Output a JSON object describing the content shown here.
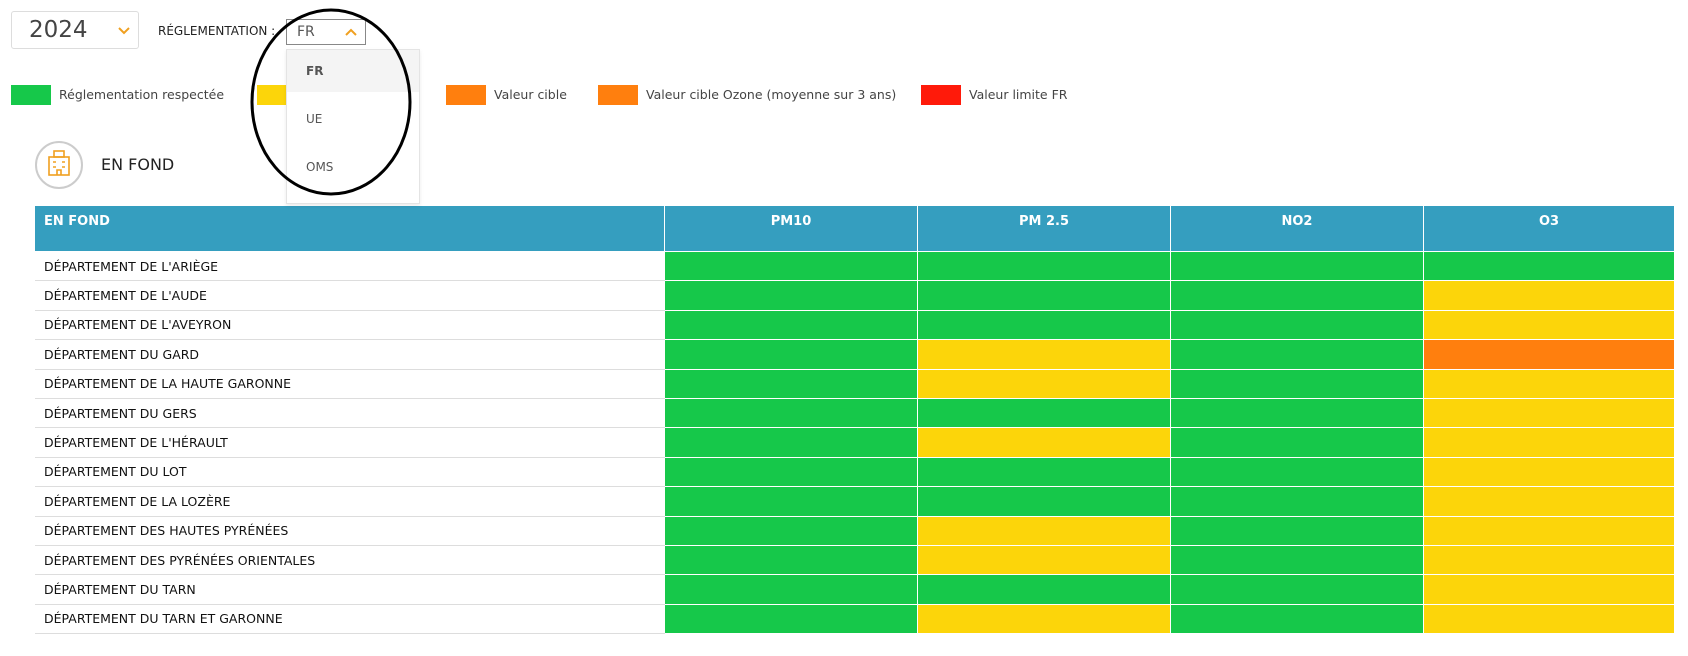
{
  "filters": {
    "year": "2024",
    "regulation_label": "RÉGLEMENTATION :",
    "regulation_value": "FR",
    "options": [
      "FR",
      "UE",
      "OMS"
    ]
  },
  "legend": [
    {
      "color": "#16c84a",
      "label": "Réglementation respectée"
    },
    {
      "color": "#fcd50a"
    },
    {
      "color": "#ff7f0e",
      "label": "Valeur cible"
    },
    {
      "color": "#ff7f0e",
      "label": "Valeur cible Ozone (moyenne sur 3 ans)"
    },
    {
      "color": "#ff1a0a",
      "label": "Valeur limite FR"
    }
  ],
  "section": {
    "title": "EN FOND"
  },
  "table": {
    "header": [
      "EN FOND",
      "PM10",
      "PM 2.5",
      "NO2",
      "O3"
    ],
    "rows": [
      {
        "name": "DÉPARTEMENT DE L'ARIÈGE",
        "cells": [
          "#16c84a",
          "#16c84a",
          "#16c84a",
          "#16c84a"
        ]
      },
      {
        "name": "DÉPARTEMENT DE L'AUDE",
        "cells": [
          "#16c84a",
          "#16c84a",
          "#16c84a",
          "#fcd50a"
        ]
      },
      {
        "name": "DÉPARTEMENT DE L'AVEYRON",
        "cells": [
          "#16c84a",
          "#16c84a",
          "#16c84a",
          "#fcd50a"
        ]
      },
      {
        "name": "DÉPARTEMENT DU GARD",
        "cells": [
          "#16c84a",
          "#fcd50a",
          "#16c84a",
          "#ff7f0e"
        ]
      },
      {
        "name": "DÉPARTEMENT DE LA HAUTE GARONNE",
        "cells": [
          "#16c84a",
          "#fcd50a",
          "#16c84a",
          "#fcd50a"
        ]
      },
      {
        "name": "DÉPARTEMENT DU GERS",
        "cells": [
          "#16c84a",
          "#16c84a",
          "#16c84a",
          "#fcd50a"
        ]
      },
      {
        "name": "DÉPARTEMENT DE L'HÉRAULT",
        "cells": [
          "#16c84a",
          "#fcd50a",
          "#16c84a",
          "#fcd50a"
        ]
      },
      {
        "name": "DÉPARTEMENT DU LOT",
        "cells": [
          "#16c84a",
          "#16c84a",
          "#16c84a",
          "#fcd50a"
        ]
      },
      {
        "name": "DÉPARTEMENT DE LA LOZÈRE",
        "cells": [
          "#16c84a",
          "#16c84a",
          "#16c84a",
          "#fcd50a"
        ]
      },
      {
        "name": "DÉPARTEMENT DES HAUTES PYRÉNÉES",
        "cells": [
          "#16c84a",
          "#fcd50a",
          "#16c84a",
          "#fcd50a"
        ]
      },
      {
        "name": "DÉPARTEMENT DES PYRÉNÉES ORIENTALES",
        "cells": [
          "#16c84a",
          "#fcd50a",
          "#16c84a",
          "#fcd50a"
        ]
      },
      {
        "name": "DÉPARTEMENT DU TARN",
        "cells": [
          "#16c84a",
          "#16c84a",
          "#16c84a",
          "#fcd50a"
        ]
      },
      {
        "name": "DÉPARTEMENT DU TARN ET GARONNE",
        "cells": [
          "#16c84a",
          "#fcd50a",
          "#16c84a",
          "#fcd50a"
        ]
      }
    ]
  }
}
